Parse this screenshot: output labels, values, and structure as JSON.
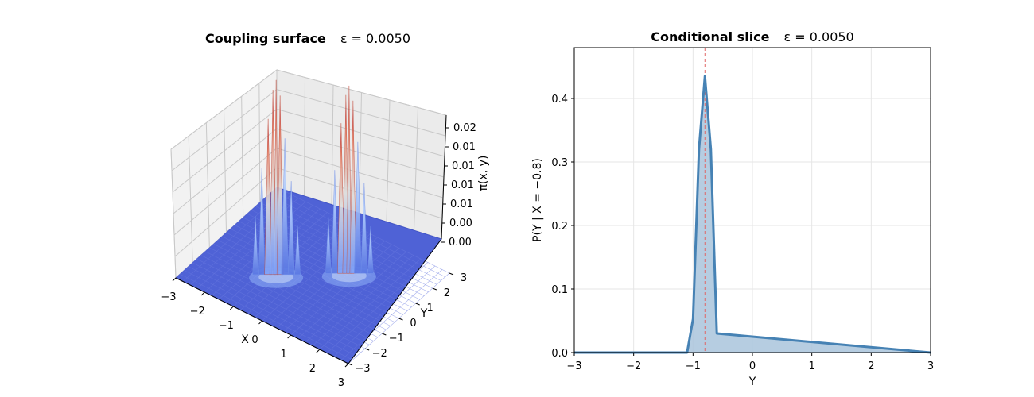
{
  "chart_data": [
    {
      "type": "surface3d",
      "title": "Coupling surface",
      "subtitle": "ε = 0.0050",
      "xlabel": "X",
      "ylabel": "Y",
      "zlabel": "π(x, y)",
      "xlim": [
        -3,
        3
      ],
      "ylim": [
        -3,
        3
      ],
      "x_ticks": [
        "−3",
        "−2",
        "−1",
        "0",
        "1",
        "2",
        "3"
      ],
      "y_ticks": [
        "−3",
        "−2",
        "−1",
        "0",
        "1",
        "2",
        "3"
      ],
      "z_ticks": [
        "0.00",
        "0.00",
        "0.01",
        "0.01",
        "0.01",
        "0.01",
        "0.02"
      ],
      "colormap": [
        "#3b4cc0",
        "#dddddd",
        "#b40426"
      ],
      "peaks": [
        {
          "x": -0.8,
          "y": -0.8,
          "z": 0.028
        },
        {
          "x": 0.8,
          "y": 0.8,
          "z": 0.027
        }
      ]
    },
    {
      "type": "area",
      "title": "Conditional slice",
      "subtitle": "ε = 0.0050",
      "xlabel": "Y",
      "ylabel": "P(Y | X = −0.8)",
      "xlim": [
        -3,
        3
      ],
      "ylim": [
        0,
        0.48
      ],
      "x_ticks": [
        -3,
        -2,
        -1,
        0,
        1,
        2,
        3
      ],
      "x_tick_labels": [
        "−3",
        "−2",
        "−1",
        "0",
        "1",
        "2",
        "3"
      ],
      "y_ticks": [
        0.0,
        0.1,
        0.2,
        0.3,
        0.4
      ],
      "y_tick_labels": [
        "0.0",
        "0.1",
        "0.2",
        "0.3",
        "0.4"
      ],
      "grid": true,
      "reference_line_x": -0.8,
      "line_color": "#4682b4",
      "fill_color": "#a9c4dc",
      "ref_color": "#e06666",
      "x": [
        -3.0,
        -1.1,
        -1.0,
        -0.9,
        -0.8,
        -0.7,
        -0.6,
        3.0
      ],
      "y": [
        0.0,
        0.0,
        0.053,
        0.32,
        0.435,
        0.32,
        0.03,
        0.0
      ]
    }
  ]
}
